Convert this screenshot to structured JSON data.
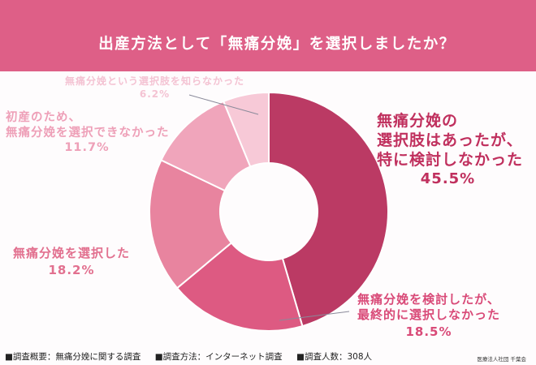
{
  "header": {
    "title": "出産方法として「無痛分娩」を選択しましたか？",
    "background_color": "#de5f87"
  },
  "chart_data": {
    "type": "pie",
    "variant": "donut",
    "title": "出産方法として「無痛分娩」を選択しましたか？",
    "start_angle_deg": -90,
    "direction": "clockwise",
    "center": [
      331,
      261
    ],
    "outer_radius": 147,
    "inner_radius": 60,
    "slices": [
      {
        "label": "無痛分娩の選択肢はあったが、特に検討しなかった",
        "value": 45.5,
        "color": "#bb3a64"
      },
      {
        "label": "無痛分娩を検討したが、最終的に選択しなかった",
        "value": 18.5,
        "color": "#dd5a82"
      },
      {
        "label": "無痛分娩を選択した",
        "value": 18.2,
        "color": "#e8849f"
      },
      {
        "label": "初産のため、無痛分娩を選択できなかった",
        "value": 11.7,
        "color": "#f0a5bb"
      },
      {
        "label": "無痛分娩という選択肢を知らなかった",
        "value": 6.2,
        "color": "#f7c9d7"
      }
    ],
    "legend": "none (direct labels)"
  },
  "labels": {
    "s1": {
      "lines": [
        "無痛分娩の",
        "選択肢はあったが、",
        "特に検討しなかった"
      ],
      "pct": "45.5%",
      "color": "#c0305e"
    },
    "s2": {
      "lines": [
        "無痛分娩を検討したが、",
        "最終的に選択しなかった"
      ],
      "pct": "18.5%",
      "color": "#d94a78"
    },
    "s3": {
      "lines": [
        "無痛分娩を選択した"
      ],
      "pct": "18.2%",
      "color": "#e2708f"
    },
    "s4": {
      "lines": [
        "初産のため、",
        "無痛分娩を選択できなかった"
      ],
      "pct": "11.7%",
      "color": "#eea0b8"
    },
    "s5": {
      "lines": [
        "無痛分娩という選択肢を知らなかった"
      ],
      "pct": "6.2%",
      "color": "#f4c3d3"
    }
  },
  "footer": {
    "overview": "■調査概要：無痛分娩に関する調査",
    "method": "■調査方法：インターネット調査",
    "respondents": "■調査人数：308人",
    "organization": "医療法人社団 千葉会"
  }
}
